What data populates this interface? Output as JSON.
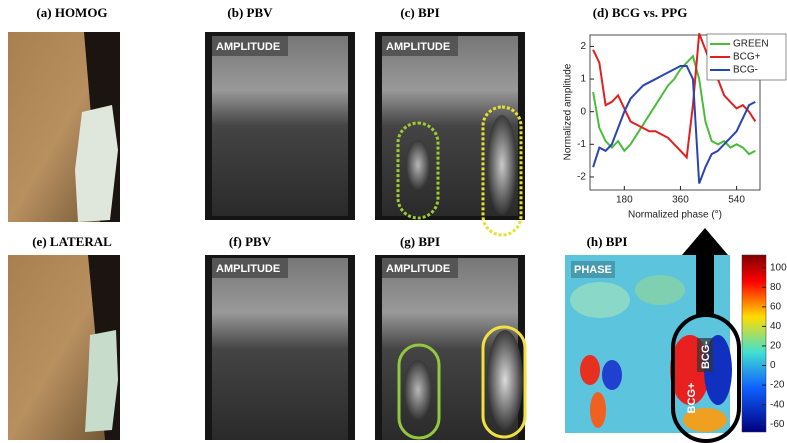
{
  "panels": [
    {
      "label": "(a) HOMOG"
    },
    {
      "label": "(b) PBV",
      "overlay": "AMPLITUDE"
    },
    {
      "label": "(c) BPI",
      "overlay": "AMPLITUDE"
    },
    {
      "label": "(e) LATERAL"
    },
    {
      "label": "(f) PBV",
      "overlay": "AMPLITUDE"
    },
    {
      "label": "(g) BPI",
      "overlay": "AMPLITUDE"
    },
    {
      "label": "(h) BPI",
      "overlay": "PHASE",
      "marks": [
        "BCG+",
        "BCG-"
      ]
    }
  ],
  "chart_data": {
    "type": "line",
    "title": "(d) BCG vs. PPG",
    "x_label": "Normalized phase (°)",
    "y_label": "Normalized amplitude",
    "x": [
      80,
      100,
      120,
      140,
      160,
      180,
      200,
      220,
      240,
      260,
      280,
      300,
      320,
      340,
      360,
      380,
      400,
      420,
      440,
      460,
      480,
      500,
      520,
      540,
      560,
      580,
      600
    ],
    "series": [
      {
        "name": "GREEN",
        "color": "#4cbb3c",
        "values": [
          0.6,
          -0.5,
          -0.9,
          -1.1,
          -0.9,
          -1.2,
          -1.0,
          -0.7,
          -0.4,
          -0.1,
          0.2,
          0.5,
          0.8,
          1.0,
          1.3,
          1.5,
          1.7,
          1.0,
          -0.3,
          -0.9,
          -1.0,
          -0.9,
          -1.1,
          -1.0,
          -1.1,
          -1.3,
          -1.2
        ]
      },
      {
        "name": "BCG+",
        "color": "#e02020",
        "values": [
          1.9,
          1.5,
          0.2,
          0.3,
          0.5,
          0.1,
          -0.3,
          -0.4,
          -0.5,
          -0.6,
          -0.6,
          -0.7,
          -0.8,
          -1.0,
          -1.2,
          -1.4,
          0.2,
          2.4,
          1.9,
          1.4,
          1.0,
          0.5,
          0.3,
          0.1,
          0.2,
          0.0,
          -0.3
        ]
      },
      {
        "name": "BCG-",
        "color": "#2a45b0",
        "values": [
          -1.7,
          -1.1,
          -1.2,
          -1.0,
          -0.5,
          0.0,
          0.4,
          0.6,
          0.8,
          0.9,
          1.0,
          1.1,
          1.2,
          1.3,
          1.4,
          1.4,
          1.0,
          -2.2,
          -1.7,
          -1.3,
          -1.2,
          -1.0,
          -0.8,
          -0.6,
          -0.2,
          0.2,
          0.3
        ]
      }
    ],
    "xlim": [
      70,
      615
    ],
    "xticks": [
      180,
      360,
      540
    ],
    "ylim": [
      -2.4,
      2.35
    ],
    "yticks": [
      -2,
      -1,
      0,
      1,
      2
    ]
  },
  "colorbar": {
    "lim": [
      -68,
      113
    ],
    "ticks": [
      100,
      80,
      60,
      40,
      20,
      0,
      -20,
      -40,
      -60
    ]
  }
}
